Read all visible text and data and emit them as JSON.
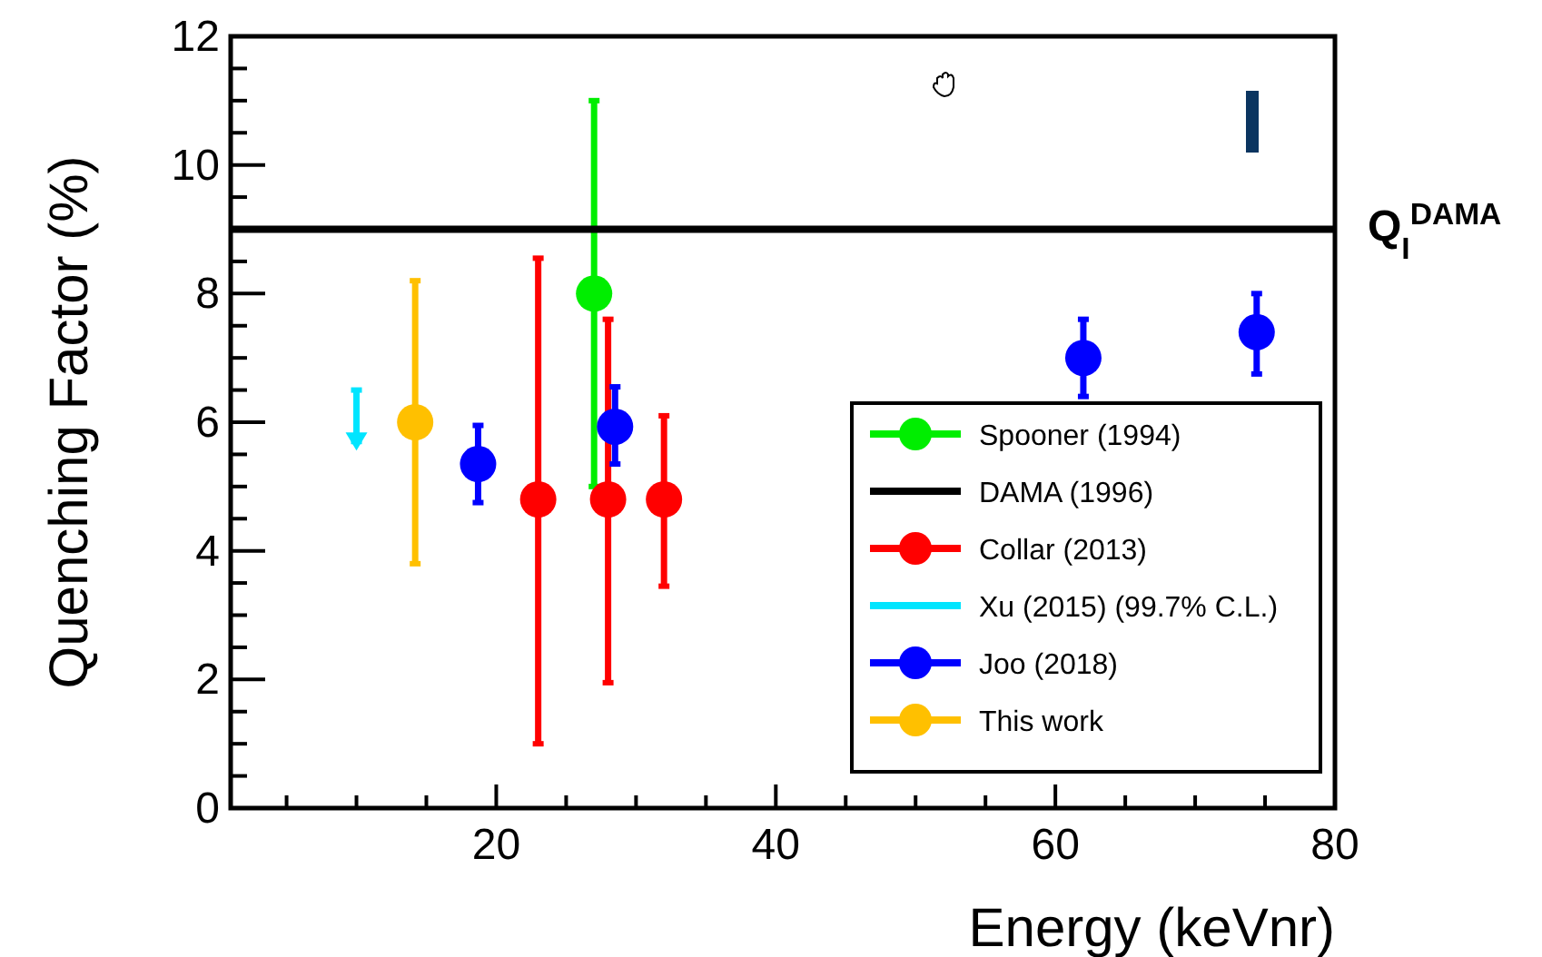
{
  "chart_data": {
    "type": "scatter",
    "xlabel": "Energy (keVnr)",
    "ylabel": "Quenching Factor (%)",
    "xlim": [
      1,
      80
    ],
    "ylim": [
      0,
      12
    ],
    "xticks": [
      {
        "value": 5,
        "label": null
      },
      {
        "value": 10,
        "label": null
      },
      {
        "value": 15,
        "label": null
      },
      20,
      {
        "value": 25,
        "label": null
      },
      {
        "value": 30,
        "label": null
      },
      {
        "value": 35,
        "label": null
      },
      40,
      {
        "value": 45,
        "label": null
      },
      {
        "value": 50,
        "label": null
      },
      {
        "value": 55,
        "label": null
      },
      60,
      {
        "value": 65,
        "label": null
      },
      {
        "value": 70,
        "label": null
      },
      {
        "value": 75,
        "label": null
      },
      80
    ],
    "yticks": [
      0,
      {
        "value": 0.5,
        "label": null
      },
      {
        "value": 1,
        "label": null
      },
      {
        "value": 1.5,
        "label": null
      },
      2,
      {
        "value": 2.5,
        "label": null
      },
      {
        "value": 3,
        "label": null
      },
      {
        "value": 3.5,
        "label": null
      },
      4,
      {
        "value": 4.5,
        "label": null
      },
      {
        "value": 5,
        "label": null
      },
      {
        "value": 5.5,
        "label": null
      },
      6,
      {
        "value": 6.5,
        "label": null
      },
      {
        "value": 7,
        "label": null
      },
      {
        "value": 7.5,
        "label": null
      },
      8,
      {
        "value": 8.5,
        "label": null
      },
      {
        "value": 9,
        "label": null
      },
      {
        "value": 9.5,
        "label": null
      },
      10,
      {
        "value": 10.5,
        "label": null
      },
      {
        "value": 11,
        "label": null
      },
      {
        "value": 11.5,
        "label": null
      },
      12
    ],
    "grid": false,
    "legend": "bottom right",
    "series": [
      {
        "name": "Spooner (1994)",
        "marker": "circle",
        "color": "#00ee00",
        "x": [
          27.0
        ],
        "values": [
          8.0
        ],
        "errors": [
          [
            5.0,
            11.0
          ]
        ]
      },
      {
        "name": "DAMA (1996)",
        "type": "line",
        "marker": "none",
        "color": "#000000",
        "x": [
          1,
          80
        ],
        "values": [
          9,
          9
        ]
      },
      {
        "name": "Collar (2013)",
        "marker": "circle",
        "color": "#ff0000",
        "x": [
          23.0,
          28.0,
          32.0
        ],
        "values": [
          4.8,
          4.8,
          4.8
        ],
        "errors": [
          [
            1.0,
            8.55
          ],
          [
            1.95,
            7.6
          ],
          [
            3.45,
            6.1
          ]
        ]
      },
      {
        "name": "Xu (2015) (99.7% C.L.)",
        "marker": "triangle",
        "color": "#00e5ff",
        "x": [
          10.0
        ],
        "values": [
          5.7
        ],
        "errors": [
          [
            5.7,
            6.5
          ]
        ]
      },
      {
        "name": "Joo (2018)",
        "marker": "circle",
        "color": "#0000ff",
        "x": [
          18.7,
          28.5,
          62.0,
          74.4
        ],
        "values": [
          5.35,
          5.93,
          7.0,
          7.4
        ],
        "errors": [
          [
            4.75,
            5.95
          ],
          [
            5.35,
            6.55
          ],
          [
            6.4,
            7.6
          ],
          [
            6.75,
            8.0
          ]
        ]
      },
      {
        "name": "This work",
        "marker": "circle",
        "color": "#ffc000",
        "x": [
          14.2
        ],
        "values": [
          6.0
        ],
        "errors": [
          [
            3.8,
            8.2
          ]
        ]
      }
    ],
    "annotations": [
      {
        "text": "Q$_{I}$$^{DAMA}$",
        "x": 80,
        "y": 9
      }
    ]
  }
}
